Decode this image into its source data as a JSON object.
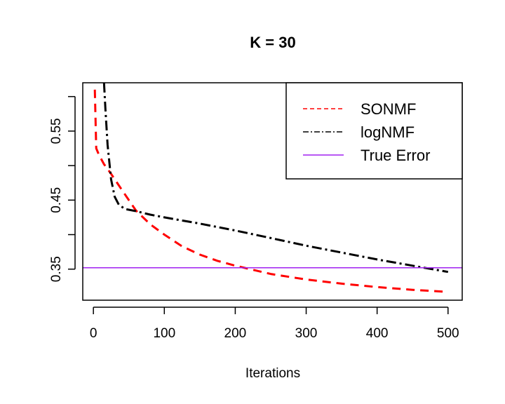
{
  "chart_data": {
    "type": "line",
    "title": "K = 30",
    "xlabel": "Iterations",
    "ylabel": "",
    "xlim": [
      -15,
      520
    ],
    "ylim": [
      0.305,
      0.62
    ],
    "x_ticks": [
      0,
      100,
      200,
      300,
      400,
      500
    ],
    "x_tick_labels": [
      "0",
      "100",
      "200",
      "300",
      "400",
      "500"
    ],
    "y_ticks": [
      0.35,
      0.4,
      0.45,
      0.5,
      0.55,
      0.6
    ],
    "y_tick_labels": [
      "0.35",
      "",
      "0.45",
      "",
      "0.55",
      ""
    ],
    "grid": false,
    "legend_position": "top-right",
    "series": [
      {
        "name": "SONMF",
        "color": "#ff0000",
        "style": "dashed",
        "x": [
          2,
          4,
          8,
          15,
          25,
          40,
          60,
          80,
          100,
          125,
          150,
          175,
          200,
          250,
          300,
          350,
          400,
          450,
          500
        ],
        "y": [
          0.61,
          0.525,
          0.515,
          0.502,
          0.488,
          0.465,
          0.435,
          0.415,
          0.4,
          0.383,
          0.371,
          0.362,
          0.355,
          0.343,
          0.335,
          0.329,
          0.324,
          0.32,
          0.317
        ]
      },
      {
        "name": "logNMF",
        "color": "#000000",
        "style": "dashdot",
        "x": [
          15,
          17,
          20,
          25,
          30,
          36,
          45,
          60,
          80,
          100,
          150,
          200,
          250,
          300,
          350,
          400,
          450,
          500
        ],
        "y": [
          0.62,
          0.58,
          0.53,
          0.48,
          0.455,
          0.443,
          0.437,
          0.434,
          0.429,
          0.425,
          0.416,
          0.406,
          0.395,
          0.384,
          0.374,
          0.364,
          0.355,
          0.346
        ]
      },
      {
        "name": "True Error",
        "color": "#a020f0",
        "style": "solid",
        "x": [
          -15,
          520
        ],
        "y": [
          0.352,
          0.352
        ]
      }
    ]
  }
}
